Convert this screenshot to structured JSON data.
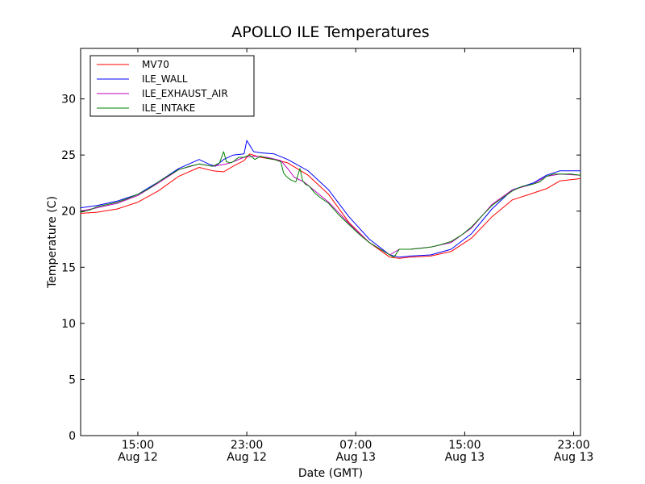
{
  "chart_data": {
    "type": "line",
    "title": "APOLLO ILE Temperatures",
    "xlabel": "Date (GMT)",
    "ylabel": "Temperature (C)",
    "x_unit": "hours since Aug 12 00:00 GMT",
    "xlim": [
      10.8,
      47.5
    ],
    "ylim": [
      0,
      34.5
    ],
    "yticks": [
      0,
      5,
      10,
      15,
      20,
      25,
      30
    ],
    "xticks": [
      {
        "x": 15,
        "line1": "15:00",
        "line2": "Aug 12"
      },
      {
        "x": 23,
        "line1": "23:00",
        "line2": "Aug 12"
      },
      {
        "x": 31,
        "line1": "07:00",
        "line2": "Aug 13"
      },
      {
        "x": 39,
        "line1": "15:00",
        "line2": "Aug 13"
      },
      {
        "x": 47,
        "line1": "23:00",
        "line2": "Aug 13"
      }
    ],
    "legend_position": "top-left",
    "series": [
      {
        "name": "MV70",
        "color": "#ff0000",
        "x": [
          10.8,
          12.0,
          13.5,
          15.0,
          16.5,
          18.0,
          19.5,
          20.5,
          21.3,
          22.0,
          22.8,
          23.2,
          24.0,
          25.0,
          26.0,
          27.5,
          29.0,
          30.5,
          32.0,
          33.5,
          34.2,
          35.0,
          36.5,
          38.0,
          39.5,
          41.0,
          42.5,
          44.0,
          45.0,
          46.0,
          47.5
        ],
        "values": [
          19.8,
          19.9,
          20.2,
          20.8,
          21.8,
          23.1,
          23.9,
          23.6,
          23.5,
          24.0,
          24.5,
          25.1,
          24.8,
          24.6,
          24.3,
          23.2,
          21.5,
          19.0,
          17.2,
          15.9,
          15.8,
          15.9,
          16.0,
          16.4,
          17.6,
          19.5,
          21.0,
          21.6,
          22.0,
          22.7,
          22.9
        ]
      },
      {
        "name": "ILE_WALL",
        "color": "#0000ff",
        "x": [
          10.8,
          12.0,
          13.5,
          15.0,
          16.5,
          18.0,
          19.5,
          20.2,
          20.7,
          21.3,
          22.0,
          22.8,
          23.0,
          23.5,
          24.0,
          25.0,
          26.0,
          27.5,
          29.0,
          30.5,
          32.0,
          33.5,
          34.2,
          35.0,
          36.5,
          38.0,
          39.5,
          41.0,
          42.5,
          44.0,
          45.0,
          46.0,
          47.5
        ],
        "values": [
          20.3,
          20.5,
          20.9,
          21.5,
          22.6,
          23.8,
          24.6,
          24.2,
          24.0,
          24.6,
          25.0,
          25.1,
          26.3,
          25.3,
          25.2,
          25.1,
          24.6,
          23.6,
          21.9,
          19.5,
          17.5,
          16.1,
          15.9,
          16.0,
          16.1,
          16.6,
          18.0,
          20.2,
          21.9,
          22.5,
          23.2,
          23.6,
          23.6
        ]
      },
      {
        "name": "ILE_EXHAUST_AIR",
        "color": "#bf00bf",
        "x": [
          10.8,
          12.0,
          13.5,
          15.0,
          16.5,
          18.0,
          19.5,
          20.5,
          21.5,
          22.0,
          22.8,
          23.5,
          24.5,
          25.5,
          26.0,
          26.5,
          27.2,
          28.0,
          29.0,
          30.5,
          32.0,
          33.5,
          34.2,
          35.0,
          36.5,
          38.0,
          39.5,
          41.0,
          42.5,
          44.0,
          45.0,
          46.0,
          47.5
        ],
        "values": [
          20.0,
          20.3,
          20.7,
          21.4,
          22.5,
          23.7,
          24.2,
          24.0,
          24.2,
          24.4,
          24.8,
          24.9,
          24.8,
          24.5,
          23.8,
          23.0,
          22.6,
          21.8,
          20.8,
          18.9,
          17.2,
          16.1,
          16.6,
          16.6,
          16.8,
          17.2,
          18.5,
          20.6,
          21.9,
          22.4,
          23.1,
          23.3,
          23.2
        ]
      },
      {
        "name": "ILE_INTAKE",
        "color": "#008000",
        "x": [
          10.8,
          11.5,
          12.0,
          12.8,
          13.5,
          14.2,
          15.0,
          15.8,
          16.5,
          17.3,
          18.0,
          18.8,
          19.5,
          20.0,
          20.5,
          21.0,
          21.3,
          21.5,
          21.8,
          22.0,
          22.4,
          22.8,
          23.2,
          23.6,
          24.0,
          24.5,
          25.0,
          25.5,
          25.7,
          25.9,
          26.2,
          26.6,
          26.9,
          27.1,
          27.3,
          27.6,
          28.0,
          28.4,
          29.0,
          29.8,
          30.5,
          31.2,
          32.0,
          32.8,
          33.5,
          33.8,
          34.2,
          34.6,
          35.0,
          35.8,
          36.5,
          37.2,
          38.0,
          38.8,
          39.5,
          40.2,
          41.0,
          41.8,
          42.5,
          43.2,
          44.0,
          44.5,
          45.0,
          45.5,
          46.0,
          46.8,
          47.5
        ],
        "values": [
          19.9,
          20.1,
          20.4,
          20.6,
          20.8,
          21.1,
          21.5,
          22.0,
          22.6,
          23.2,
          23.7,
          24.0,
          24.2,
          24.1,
          24.0,
          24.3,
          25.3,
          24.4,
          24.3,
          24.4,
          24.8,
          24.8,
          25.0,
          24.6,
          24.9,
          24.7,
          24.6,
          24.4,
          23.4,
          23.1,
          22.8,
          22.6,
          23.8,
          22.7,
          22.4,
          22.2,
          21.6,
          21.2,
          20.7,
          19.6,
          18.8,
          18.0,
          17.2,
          16.6,
          16.1,
          15.9,
          16.6,
          16.6,
          16.6,
          16.7,
          16.8,
          17.0,
          17.3,
          17.9,
          18.6,
          19.5,
          20.5,
          21.2,
          21.8,
          22.2,
          22.4,
          22.6,
          23.1,
          23.3,
          23.3,
          23.3,
          23.2
        ]
      }
    ]
  }
}
